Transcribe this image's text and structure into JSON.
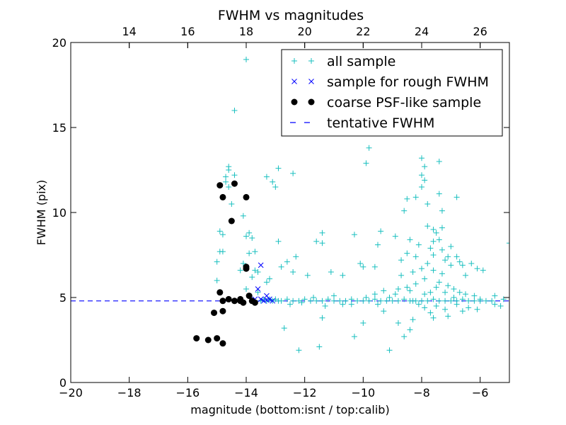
{
  "chart_data": {
    "type": "scatter",
    "title": "FWHM vs magnitudes",
    "xlabel": "magnitude (bottom:isnt / top:calib)",
    "ylabel": "FWHM (pix)",
    "xlim": [
      -20,
      -5
    ],
    "ylim": [
      0,
      20
    ],
    "x_ticks": [
      -20,
      -18,
      -16,
      -14,
      -12,
      -10,
      -8,
      -6
    ],
    "y_ticks": [
      0,
      5,
      10,
      15,
      20
    ],
    "top_axis": {
      "offset": 32.0,
      "ticks": [
        14,
        16,
        18,
        20,
        22,
        24,
        26
      ]
    },
    "grid": false,
    "legend_position": "upper-right",
    "colors": {
      "all_sample": "#19BFBF",
      "rough_sample": "#0000FF",
      "psf_sample": "#000000",
      "tentative": "#0000FF"
    },
    "series": [
      {
        "name": "all sample",
        "marker": "plus",
        "points": [
          [
            -14,
            19
          ],
          [
            -14.4,
            16
          ],
          [
            -14.6,
            12.7
          ],
          [
            -14.6,
            12.5
          ],
          [
            -14.7,
            12.1
          ],
          [
            -14.6,
            11.5
          ],
          [
            -14.5,
            10.5
          ],
          [
            -14.7,
            11.8
          ],
          [
            -14.9,
            8.9
          ],
          [
            -14.8,
            8.7
          ],
          [
            -14.9,
            7.7
          ],
          [
            -14.8,
            7.7
          ],
          [
            -15,
            7.1
          ],
          [
            -14.1,
            9.8
          ],
          [
            -14,
            8.6
          ],
          [
            -13.9,
            8.8
          ],
          [
            -13.8,
            8.5
          ],
          [
            -13.9,
            7.6
          ],
          [
            -13.7,
            7.7
          ],
          [
            -14.1,
            7
          ],
          [
            -13.7,
            6.6
          ],
          [
            -13.6,
            6.5
          ],
          [
            -13.8,
            6.2
          ],
          [
            -14.4,
            12.2
          ],
          [
            -15,
            6
          ],
          [
            -14.2,
            6.6
          ],
          [
            -14,
            5.5
          ],
          [
            -13.6,
            5.3
          ],
          [
            -13.3,
            5.9
          ],
          [
            -13.2,
            6.1
          ],
          [
            -12.8,
            6.8
          ],
          [
            -12.6,
            7.1
          ],
          [
            -12.3,
            7.4
          ],
          [
            -13.3,
            12.1
          ],
          [
            -13.1,
            11.8
          ],
          [
            -12.9,
            12.6
          ],
          [
            -12.4,
            12.3
          ],
          [
            -13,
            11.5
          ],
          [
            -12.9,
            8.3
          ],
          [
            -12.4,
            6.5
          ],
          [
            -11.9,
            6.3
          ],
          [
            -11.6,
            8.3
          ],
          [
            -11.4,
            8.2
          ],
          [
            -11.4,
            8.8
          ],
          [
            -11.1,
            6.5
          ],
          [
            -10.7,
            6.3
          ],
          [
            -10.3,
            8.7
          ],
          [
            -10.1,
            7
          ],
          [
            -10,
            6.8
          ],
          [
            -9.8,
            13.8
          ],
          [
            -9.9,
            12.9
          ],
          [
            -9.4,
            8.9
          ],
          [
            -9.5,
            8.1
          ],
          [
            -9.6,
            6.8
          ],
          [
            -12.7,
            3.2
          ],
          [
            -12.2,
            1.9
          ],
          [
            -11.5,
            2.1
          ],
          [
            -11.4,
            3.8
          ],
          [
            -10.3,
            2.7
          ],
          [
            -10,
            3.5
          ],
          [
            -9.1,
            1.9
          ],
          [
            -8.6,
            2.7
          ],
          [
            -8.4,
            3.1
          ],
          [
            -8.3,
            3.7
          ],
          [
            -8.8,
            3.5
          ],
          [
            -9.3,
            4.2
          ],
          [
            -8,
            13.2
          ],
          [
            -7.9,
            12.7
          ],
          [
            -8,
            12.2
          ],
          [
            -7.9,
            11.9
          ],
          [
            -8,
            11.5
          ],
          [
            -7.8,
            10.5
          ],
          [
            -7.4,
            13
          ],
          [
            -7.4,
            11.1
          ],
          [
            -7.3,
            10.1
          ],
          [
            -8.5,
            10.8
          ],
          [
            -8.6,
            10.1
          ],
          [
            -8.2,
            10.9
          ],
          [
            -6.8,
            10.9
          ],
          [
            -7.5,
            8.8
          ],
          [
            -7.6,
            8.3
          ],
          [
            -7.7,
            7.9
          ],
          [
            -8.1,
            8.1
          ],
          [
            -8.4,
            8.4
          ],
          [
            -8.9,
            8.6
          ],
          [
            -8.5,
            7.6
          ],
          [
            -8.2,
            7.4
          ],
          [
            -7.8,
            7
          ],
          [
            -7.2,
            7.2
          ],
          [
            -7,
            6.9
          ],
          [
            -6.8,
            7.4
          ],
          [
            -6.6,
            6.9
          ],
          [
            -6.3,
            7
          ],
          [
            -6.1,
            6.7
          ],
          [
            -5.9,
            6.6
          ],
          [
            -5,
            8.2
          ],
          [
            -7.6,
            6.6
          ],
          [
            -7.9,
            6.1
          ],
          [
            -8.2,
            5.8
          ],
          [
            -8.5,
            5.6
          ],
          [
            -8.8,
            5.5
          ],
          [
            -7.4,
            5.9
          ],
          [
            -7.1,
            5.7
          ],
          [
            -6.9,
            5.5
          ],
          [
            -6.7,
            5.3
          ],
          [
            -6.5,
            5.2
          ],
          [
            -6.2,
            5.1
          ],
          [
            -6,
            4.9
          ],
          [
            -5.5,
            5.1
          ],
          [
            -5.3,
            4.5
          ],
          [
            -6.1,
            4.3
          ],
          [
            -6.6,
            4.2
          ],
          [
            -7.1,
            3.9
          ],
          [
            -7.6,
            3.8
          ],
          [
            -7.9,
            4.4
          ],
          [
            -8.1,
            4.6
          ],
          [
            -8.3,
            4.8
          ],
          [
            -7.7,
            4.1
          ],
          [
            -7.2,
            4.3
          ],
          [
            -6.8,
            4.6
          ],
          [
            -8.9,
            5.2
          ],
          [
            -9.3,
            5.4
          ],
          [
            -9.6,
            5.2
          ],
          [
            -8.7,
            6.3
          ],
          [
            -8,
            6.7
          ],
          [
            -7.3,
            6.4
          ],
          [
            -7.7,
            5.3
          ],
          [
            -7.5,
            5.6
          ],
          [
            -7.2,
            5.3
          ],
          [
            -6.9,
            5
          ],
          [
            -7.9,
            5.2
          ],
          [
            -8.4,
            5.4
          ],
          [
            -7.6,
            7.5
          ],
          [
            -7.3,
            7.8
          ],
          [
            -7,
            8
          ],
          [
            -7.4,
            8.4
          ],
          [
            -7.1,
            7.4
          ],
          [
            -6.7,
            7.1
          ],
          [
            -7.8,
            9.2
          ],
          [
            -7.6,
            9
          ],
          [
            -7.3,
            9.1
          ],
          [
            -8.7,
            7.2
          ],
          [
            -8.3,
            6.5
          ],
          [
            -6.5,
            6.3
          ],
          [
            -13.5,
            4.8
          ],
          [
            -13.4,
            4.9
          ],
          [
            -13.3,
            4.8
          ],
          [
            -13.2,
            4.9
          ],
          [
            -13.1,
            4.8
          ],
          [
            -13,
            4.9
          ],
          [
            -12.9,
            4.8
          ],
          [
            -12.8,
            4.8
          ],
          [
            -12.6,
            4.9
          ],
          [
            -12.4,
            4.8
          ],
          [
            -12.2,
            4.8
          ],
          [
            -12,
            4.9
          ],
          [
            -11.8,
            4.8
          ],
          [
            -11.6,
            4.8
          ],
          [
            -11.4,
            4.8
          ],
          [
            -11.2,
            4.9
          ],
          [
            -11,
            4.8
          ],
          [
            -10.8,
            4.8
          ],
          [
            -10.6,
            4.8
          ],
          [
            -10.4,
            4.9
          ],
          [
            -10.2,
            4.8
          ],
          [
            -10,
            4.8
          ],
          [
            -9.8,
            4.8
          ],
          [
            -9.6,
            4.9
          ],
          [
            -9.4,
            4.8
          ],
          [
            -9.2,
            4.8
          ],
          [
            -9,
            4.8
          ],
          [
            -8.8,
            4.8
          ],
          [
            -8.6,
            4.9
          ],
          [
            -8.4,
            4.8
          ],
          [
            -8.2,
            4.8
          ],
          [
            -8,
            4.8
          ],
          [
            -7.8,
            4.8
          ],
          [
            -7.6,
            4.9
          ],
          [
            -7.4,
            4.8
          ],
          [
            -7.2,
            4.8
          ],
          [
            -7,
            4.8
          ],
          [
            -6.8,
            4.8
          ],
          [
            -6.6,
            4.9
          ],
          [
            -6.4,
            4.8
          ],
          [
            -6.2,
            4.8
          ],
          [
            -6,
            4.8
          ],
          [
            -5.8,
            4.8
          ],
          [
            -5.6,
            4.8
          ],
          [
            -12.5,
            4.6
          ],
          [
            -12.1,
            4.7
          ],
          [
            -11.7,
            5
          ],
          [
            -11,
            5.1
          ],
          [
            -10.7,
            4.6
          ],
          [
            -9.9,
            5
          ],
          [
            -9.5,
            4.6
          ],
          [
            -9.1,
            5
          ],
          [
            -11.3,
            4.5
          ],
          [
            -10.4,
            4.6
          ],
          [
            -5.2,
            4.9
          ],
          [
            -5.5,
            4.6
          ],
          [
            -7.5,
            4.5
          ],
          [
            -6.4,
            4.4
          ]
        ]
      },
      {
        "name": "sample for rough FWHM",
        "marker": "x",
        "points": [
          [
            -13.5,
            6.9
          ],
          [
            -13.6,
            5.5
          ],
          [
            -13.3,
            5.1
          ],
          [
            -13.4,
            4.8
          ],
          [
            -13.2,
            4.9
          ],
          [
            -13.5,
            4.9
          ],
          [
            -13.3,
            4.85
          ],
          [
            -13.1,
            4.8
          ],
          [
            -13.7,
            4.9
          ]
        ]
      },
      {
        "name": "coarse PSF-like sample",
        "marker": "circle",
        "points": [
          [
            -15.7,
            2.6
          ],
          [
            -15.3,
            2.5
          ],
          [
            -15,
            2.6
          ],
          [
            -14.8,
            2.3
          ],
          [
            -15.1,
            4.1
          ],
          [
            -14.8,
            4.2
          ],
          [
            -14.9,
            5.3
          ],
          [
            -14.8,
            4.8
          ],
          [
            -14.6,
            4.9
          ],
          [
            -14.4,
            4.8
          ],
          [
            -14.2,
            4.8
          ],
          [
            -14.1,
            4.7
          ],
          [
            -13.9,
            5.1
          ],
          [
            -13.8,
            4.8
          ],
          [
            -13.7,
            4.7
          ],
          [
            -14.2,
            4.9
          ],
          [
            -14,
            6.8
          ],
          [
            -14,
            6.7
          ],
          [
            -14.5,
            9.5
          ],
          [
            -14.8,
            10.9
          ],
          [
            -14.9,
            11.6
          ],
          [
            -14.4,
            11.7
          ],
          [
            -14,
            10.9
          ]
        ]
      },
      {
        "name": "tentative FWHM",
        "marker": "dashed-line",
        "y": 4.8
      }
    ]
  }
}
